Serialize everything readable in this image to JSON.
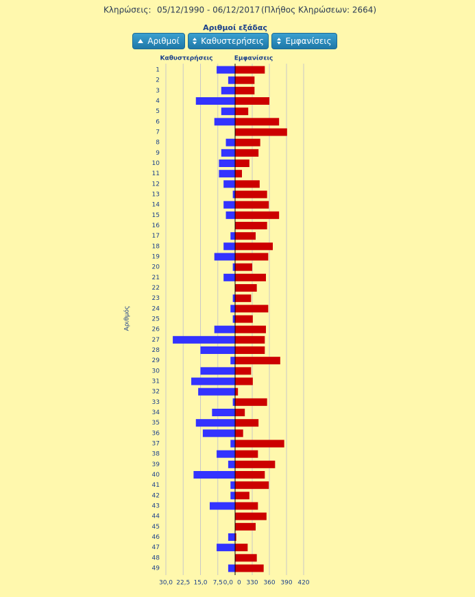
{
  "header": {
    "label": "Κληρώσεις:",
    "period": "05/12/1990 - 06/12/2017",
    "count": "(Πλήθος Κληρώσεων: 2664)"
  },
  "buttons": [
    "Αριθμοί",
    "Καθυστερήσεις",
    "Εμφανίσεις"
  ],
  "chart_data": {
    "type": "diverging-bar",
    "title": "Αριθμοί εξάδας",
    "ylabel": "Αριθμός",
    "categories": [
      1,
      2,
      3,
      4,
      5,
      6,
      7,
      8,
      9,
      10,
      11,
      12,
      13,
      14,
      15,
      16,
      17,
      18,
      19,
      20,
      21,
      22,
      23,
      24,
      25,
      26,
      27,
      28,
      29,
      30,
      31,
      32,
      33,
      34,
      35,
      36,
      37,
      38,
      39,
      40,
      41,
      42,
      43,
      44,
      45,
      46,
      47,
      48,
      49
    ],
    "series": [
      {
        "name": "Καθυστερήσεις",
        "color": "#3333ff",
        "xlim": [
          0,
          30
        ],
        "xticks": [
          {
            "value": 30,
            "label": "30,0"
          },
          {
            "value": 22.5,
            "label": "22,5"
          },
          {
            "value": 15,
            "label": "15,0"
          },
          {
            "value": 7.5,
            "label": "7,5"
          },
          {
            "value": 0,
            "label": "0,0"
          }
        ],
        "values": [
          8,
          3,
          6,
          17,
          6,
          9,
          0,
          4,
          6,
          7,
          7,
          5,
          1,
          5,
          4,
          0,
          2,
          5,
          9,
          1,
          5,
          0,
          1,
          2,
          1,
          9,
          27,
          15,
          2,
          15,
          19,
          16,
          1,
          10,
          17,
          14,
          2,
          8,
          3,
          18,
          2,
          2,
          11,
          0,
          0,
          3,
          8,
          0,
          3
        ]
      },
      {
        "name": "Εμφανίσεις",
        "color": "#cc0000",
        "xlim": [
          300,
          420
        ],
        "xticks": [
          {
            "value": 300,
            "label": "0"
          },
          330,
          360,
          390,
          420
        ],
        "values": [
          352,
          334,
          334,
          360,
          323,
          377,
          391,
          344,
          341,
          325,
          312,
          343,
          356,
          359,
          377,
          356,
          336,
          366,
          358,
          330,
          354,
          338,
          328,
          358,
          331,
          354,
          352,
          352,
          379,
          328,
          331,
          305,
          356,
          317,
          341,
          314,
          386,
          340,
          370,
          352,
          359,
          325,
          340,
          355,
          336,
          302,
          322,
          338,
          350
        ]
      }
    ],
    "grid": true
  }
}
